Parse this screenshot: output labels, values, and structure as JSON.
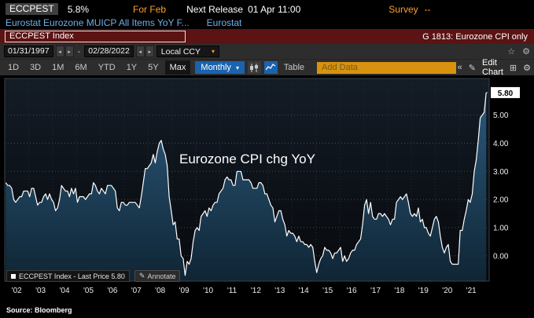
{
  "header": {
    "ticker": "ECCPEST",
    "last_value": "5.8%",
    "period_label": "For Feb",
    "next_release_label": "Next Release",
    "next_release_value": "01 Apr 11:00",
    "survey_label": "Survey",
    "survey_value": "--",
    "description": "Eurostat Eurozone MUICP All Items YoY F...",
    "source_name": "Eurostat"
  },
  "titlebar": {
    "security": "ECCPEST Index",
    "chart_id": "G 1813: Eurozone CPI only"
  },
  "range_bar": {
    "start_date": "01/31/1997",
    "end_date": "02/28/2022",
    "separator": "-",
    "currency": "Local CCY"
  },
  "toolbar": {
    "range_tabs": [
      "1D",
      "3D",
      "1M",
      "6M",
      "YTD",
      "1Y",
      "5Y",
      "Max"
    ],
    "active_tab": "Max",
    "frequency": "Monthly",
    "table_label": "Table",
    "add_data_placeholder": "Add Data",
    "edit_chart_label": "Edit Chart"
  },
  "chart_data": {
    "type": "area",
    "title": "Eurozone CPI chg YoY",
    "series_name": "ECCPEST Index",
    "frequency": "monthly",
    "start": "2002-01",
    "end": "2022-02",
    "values_yoy_pct": [
      2.6,
      2.5,
      2.5,
      2.4,
      2.0,
      1.9,
      2.0,
      2.1,
      2.1,
      2.3,
      2.3,
      2.3,
      2.1,
      2.4,
      2.4,
      2.1,
      1.8,
      1.9,
      1.9,
      2.1,
      2.2,
      2.0,
      2.2,
      2.0,
      1.9,
      1.6,
      1.7,
      2.0,
      2.5,
      2.4,
      2.3,
      2.3,
      2.1,
      2.4,
      2.2,
      2.4,
      1.9,
      2.1,
      2.1,
      2.1,
      2.0,
      2.1,
      2.2,
      2.2,
      2.6,
      2.5,
      2.3,
      2.2,
      2.4,
      2.3,
      2.2,
      2.5,
      2.5,
      2.5,
      2.4,
      2.3,
      1.7,
      1.6,
      1.9,
      1.9,
      1.8,
      1.8,
      1.9,
      1.9,
      1.9,
      1.9,
      1.8,
      1.7,
      2.1,
      2.6,
      3.1,
      3.1,
      3.2,
      3.3,
      3.6,
      3.3,
      3.7,
      4.0,
      4.1,
      3.8,
      3.6,
      3.2,
      2.1,
      1.6,
      1.1,
      1.2,
      0.6,
      0.6,
      0.0,
      -0.1,
      -0.7,
      -0.2,
      -0.3,
      -0.1,
      0.5,
      0.9,
      1.0,
      0.9,
      1.4,
      1.5,
      1.6,
      1.4,
      1.7,
      1.6,
      1.8,
      1.9,
      1.9,
      2.2,
      2.3,
      2.4,
      2.7,
      2.8,
      2.7,
      2.7,
      2.5,
      2.5,
      3.0,
      3.0,
      3.0,
      2.7,
      2.7,
      2.7,
      2.7,
      2.6,
      2.4,
      2.4,
      2.4,
      2.6,
      2.6,
      2.5,
      2.2,
      2.2,
      2.0,
      1.8,
      1.7,
      1.2,
      1.4,
      1.6,
      1.6,
      1.3,
      1.1,
      0.7,
      0.9,
      0.8,
      0.8,
      0.7,
      0.5,
      0.7,
      0.5,
      0.5,
      0.4,
      0.4,
      0.3,
      0.4,
      0.3,
      -0.2,
      -0.6,
      -0.3,
      -0.1,
      0.0,
      0.3,
      0.2,
      0.2,
      0.1,
      -0.1,
      0.1,
      0.1,
      0.2,
      0.3,
      -0.2,
      0.0,
      -0.2,
      -0.1,
      0.1,
      0.2,
      0.2,
      0.4,
      0.5,
      0.6,
      1.1,
      1.8,
      2.0,
      1.5,
      1.9,
      1.4,
      1.3,
      1.3,
      1.5,
      1.5,
      1.4,
      1.5,
      1.4,
      1.3,
      1.1,
      1.3,
      1.3,
      1.9,
      2.0,
      2.1,
      2.0,
      2.1,
      2.2,
      1.9,
      1.5,
      1.4,
      1.5,
      1.4,
      1.7,
      1.2,
      1.3,
      1.0,
      1.0,
      0.8,
      0.7,
      1.0,
      1.3,
      1.4,
      1.2,
      0.7,
      0.3,
      0.1,
      0.3,
      0.4,
      -0.2,
      -0.3,
      -0.3,
      -0.3,
      -0.3,
      0.9,
      0.9,
      1.3,
      1.6,
      2.0,
      1.9,
      2.2,
      3.0,
      3.4,
      4.1,
      4.9,
      5.0,
      5.1,
      5.8
    ],
    "x_tick_labels": [
      "'02",
      "'03",
      "'04",
      "'05",
      "'06",
      "'07",
      "'08",
      "'09",
      "'10",
      "'11",
      "'12",
      "'13",
      "'14",
      "'15",
      "'16",
      "'17",
      "'18",
      "'19",
      "'20",
      "'21"
    ],
    "y_ticks": [
      0.0,
      1.0,
      2.0,
      3.0,
      4.0,
      5.0
    ],
    "last_price": 5.8,
    "ylim": [
      -0.9,
      6.3
    ],
    "x_range_years": [
      2002.0,
      2022.25
    ],
    "grid": "dotted",
    "line_color": "#ffffff",
    "fill_color": "#1b3c55"
  },
  "legend": {
    "series_label": "ECCPEST Index - Last Price 5.80",
    "annotate_label": "Annotate"
  },
  "footer": {
    "source": "Source:  Bloomberg"
  },
  "colors": {
    "amber": "#ff9e2c",
    "cyan": "#6fb1e8",
    "red_bar": "#5c1313",
    "toolbar_bg": "#2d2d2d",
    "accent_blue": "#1b63ae",
    "add_data_amber": "#d8920f"
  }
}
